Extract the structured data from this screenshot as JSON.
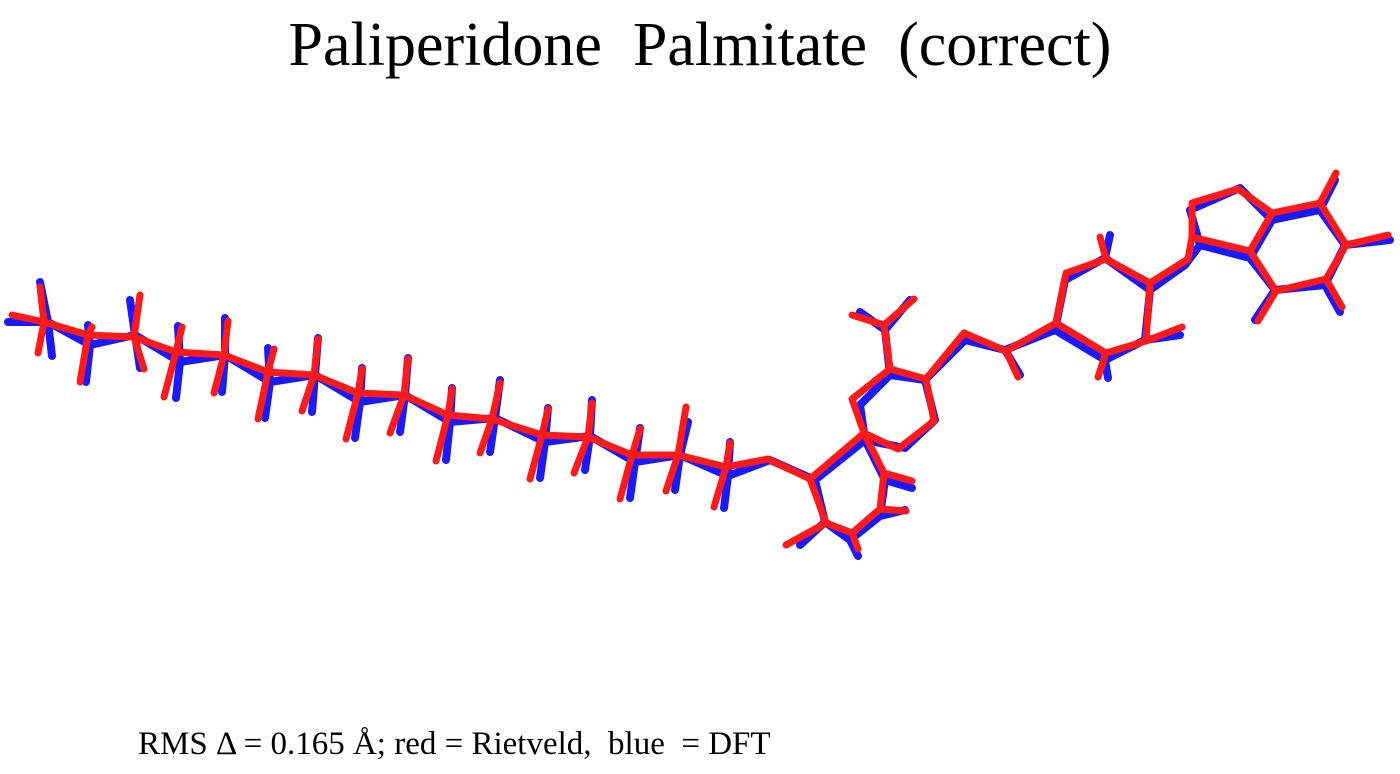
{
  "figure": {
    "title": "Paliperidone  Palmitate  (correct)",
    "caption": "RMS Δ = 0.165 Å; red = Rietveld,  blue  = DFT"
  },
  "overlay": {
    "structures": [
      {
        "method": "Rietveld",
        "color": "#ff1a1a"
      },
      {
        "method": "DFT",
        "color": "#1a1aff"
      }
    ],
    "rms_deviation_angstrom": 0.165
  }
}
